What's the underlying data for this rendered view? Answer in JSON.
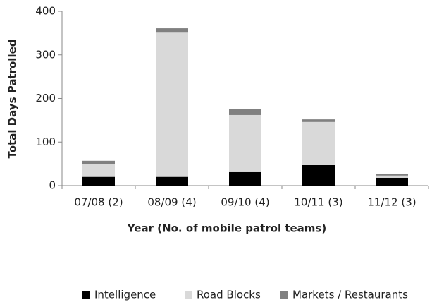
{
  "chart_data": {
    "type": "stacked_bar",
    "categories": [
      "07/08 (2)",
      "08/09 (4)",
      "09/10 (4)",
      "10/11 (3)",
      "11/12 (3)"
    ],
    "series": [
      {
        "name": "Intelligence",
        "color": "#000000",
        "values": [
          20,
          20,
          31,
          47,
          18
        ]
      },
      {
        "name": "Road Blocks",
        "color": "#d9d9d9",
        "values": [
          30,
          331,
          131,
          99,
          5
        ]
      },
      {
        "name": "Markets / Restaurants",
        "color": "#808080",
        "values": [
          7,
          10,
          13,
          6,
          3
        ]
      }
    ],
    "xlabel": "Year (No. of mobile patrol teams)",
    "ylabel": "Total Days  Patrolled",
    "ylim": [
      0,
      400
    ],
    "yticks": [
      0,
      100,
      200,
      300,
      400
    ],
    "legend": "bottom"
  }
}
